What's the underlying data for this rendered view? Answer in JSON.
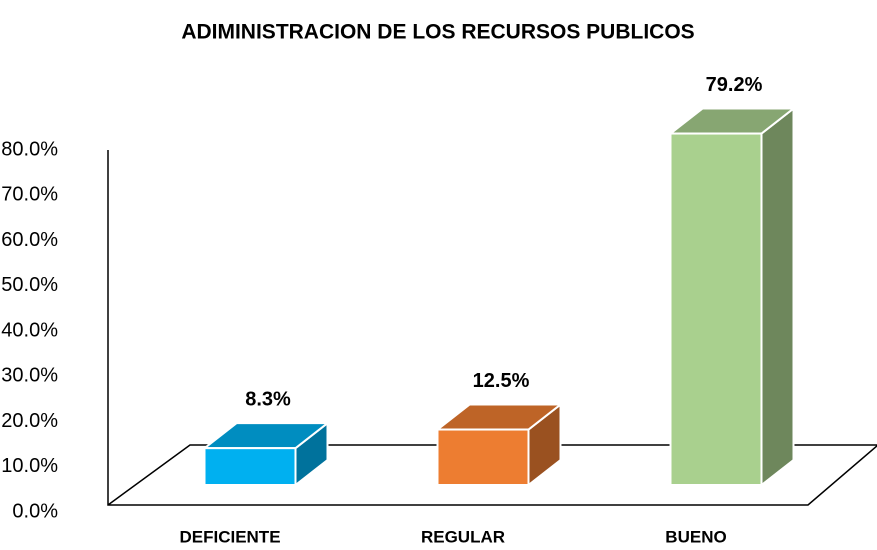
{
  "chart_data": {
    "type": "bar3d",
    "title": "ADIMINISTRACION DE LOS RECURSOS PUBLICOS",
    "categories": [
      "DEFICIENTE",
      "REGULAR",
      "BUENO"
    ],
    "values": [
      8.3,
      12.5,
      79.2
    ],
    "value_labels": [
      "8.3%",
      "12.5%",
      "79.2%"
    ],
    "colors": [
      "#00b0f0",
      "#ed7d31",
      "#a9d08e"
    ],
    "ylim": [
      0,
      80
    ],
    "yticks": [
      {
        "value": 0,
        "label": "0.0%"
      },
      {
        "value": 10,
        "label": "10.0%"
      },
      {
        "value": 20,
        "label": "20.0%"
      },
      {
        "value": 30,
        "label": "30.0%"
      },
      {
        "value": 40,
        "label": "40.0%"
      },
      {
        "value": 50,
        "label": "50.0%"
      },
      {
        "value": 60,
        "label": "60.0%"
      },
      {
        "value": 70,
        "label": "70.0%"
      },
      {
        "value": 80,
        "label": "80.0%"
      }
    ]
  }
}
